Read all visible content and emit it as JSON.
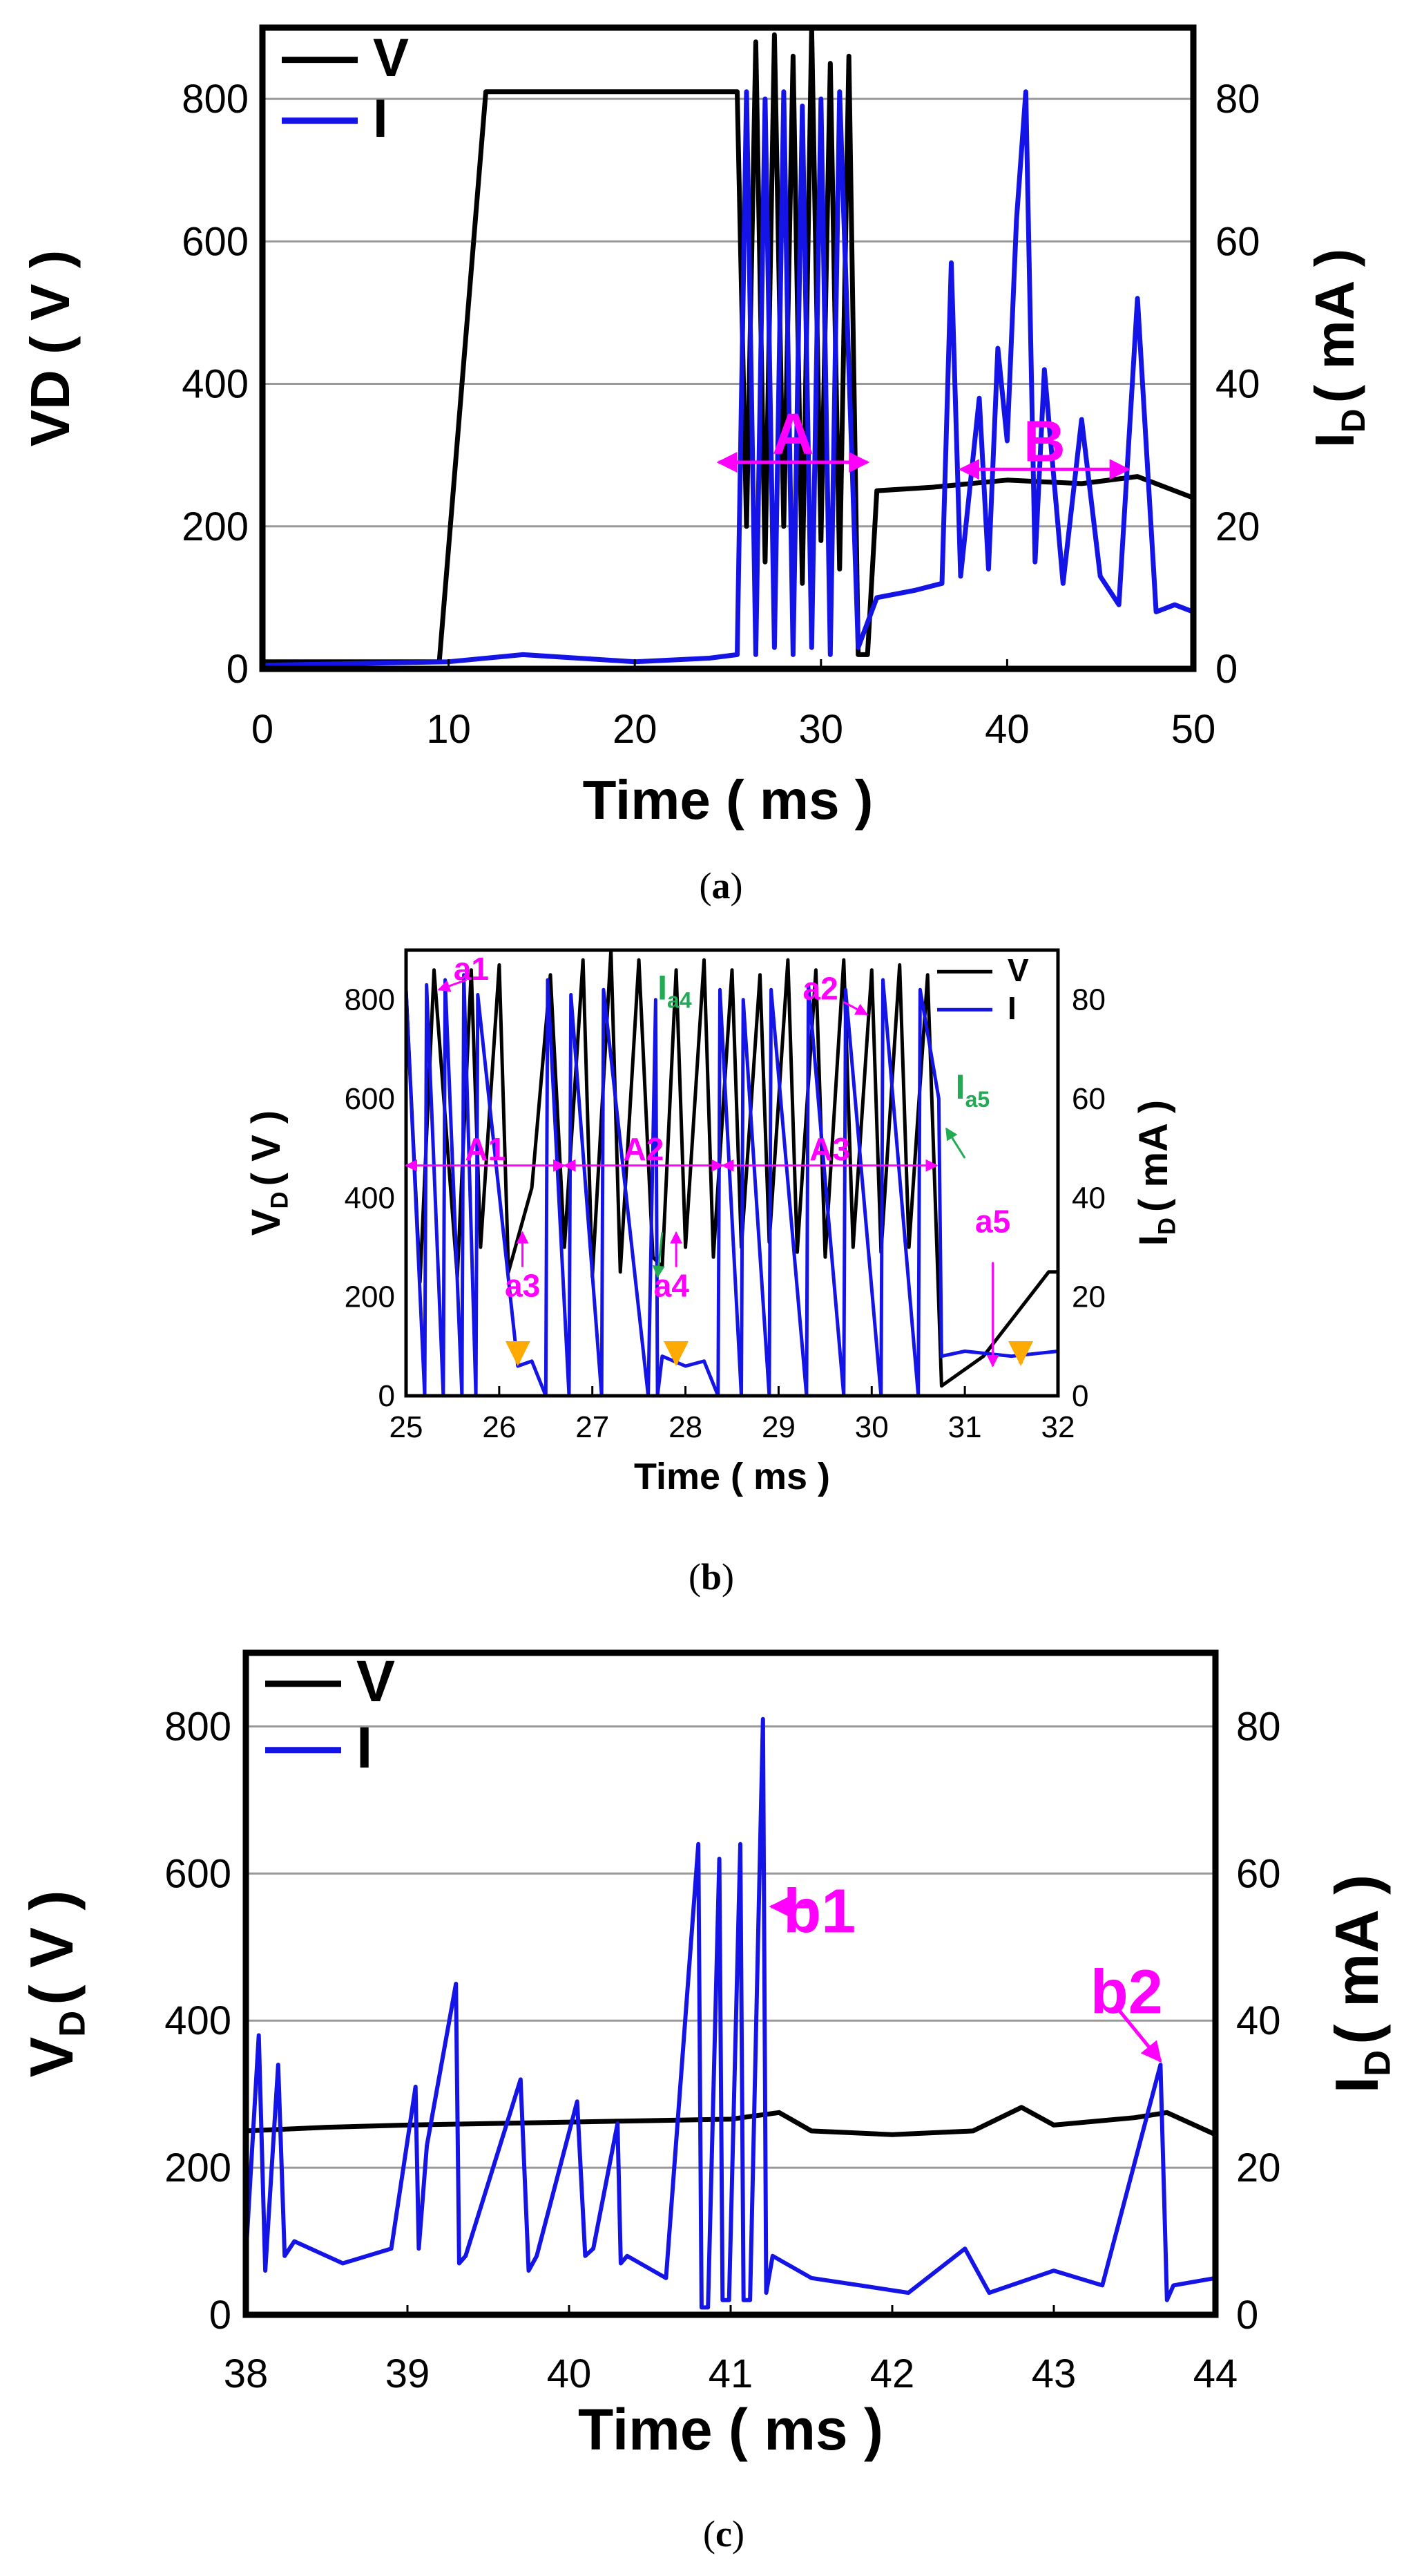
{
  "chart_data": [
    {
      "type": "line",
      "caption_paren_left": "(",
      "caption_letter": "a",
      "caption_paren_right": ")",
      "xlabel": "Time ( ms )",
      "ylabel": "VD ( V )",
      "y2label_main": "I",
      "y2label_sub": "D",
      "y2label_rest": "( mA )",
      "xlim": [
        0,
        50
      ],
      "ylim": [
        0,
        900
      ],
      "y2lim": [
        0,
        90
      ],
      "xticks": [
        "0",
        "10",
        "20",
        "30",
        "40",
        "50"
      ],
      "yticks": [
        "0",
        "200",
        "400",
        "600",
        "800"
      ],
      "y2ticks": [
        "0",
        "20",
        "40",
        "60",
        "80"
      ],
      "grid": "horizontal",
      "legend": {
        "placement": "top-left",
        "items": [
          {
            "label": "V",
            "color": "#000000"
          },
          {
            "label": "I",
            "color": "#1414e6"
          }
        ]
      },
      "annotations": [
        {
          "text": "A",
          "color": "#ff00ff",
          "x_start": 24.5,
          "x_end": 32.5,
          "y": 290
        },
        {
          "text": "B",
          "color": "#ff00ff",
          "x_start": 37.5,
          "x_end": 46.5,
          "y": 280
        }
      ],
      "series": [
        {
          "name": "V",
          "color": "#000000",
          "axis": "left",
          "x": [
            0,
            9.5,
            12,
            25.5,
            26,
            26.5,
            27,
            27.5,
            28,
            28.5,
            29,
            29.5,
            30,
            30.5,
            31,
            31.5,
            32,
            32.5,
            33,
            36,
            40,
            44,
            47,
            50
          ],
          "y": [
            10,
            10,
            810,
            810,
            200,
            880,
            150,
            890,
            200,
            860,
            120,
            900,
            180,
            850,
            140,
            860,
            20,
            20,
            250,
            255,
            265,
            260,
            270,
            240
          ]
        },
        {
          "name": "I",
          "color": "#1414e6",
          "axis": "right",
          "x": [
            0,
            10,
            14,
            20,
            24,
            25.5,
            26,
            26.5,
            27,
            27.5,
            28,
            28.5,
            29,
            29.5,
            30,
            30.5,
            31,
            32,
            33,
            35,
            36.5,
            37,
            37.5,
            38.5,
            39,
            39.5,
            40,
            40.5,
            41,
            41.5,
            42,
            43,
            44,
            45,
            46,
            47,
            48,
            49,
            50
          ],
          "y": [
            0.5,
            1,
            2,
            1,
            1.5,
            2,
            81,
            2,
            80,
            3,
            81,
            2,
            79,
            3,
            80,
            2,
            81,
            3,
            10,
            11,
            12,
            57,
            13,
            38,
            14,
            45,
            32,
            63,
            81,
            15,
            42,
            12,
            35,
            13,
            9,
            52,
            8,
            9,
            8
          ]
        }
      ]
    },
    {
      "type": "line",
      "caption_paren_left": "(",
      "caption_letter": "b",
      "caption_paren_right": ")",
      "xlabel": "Time ( ms )",
      "ylabel_main": "V",
      "ylabel_sub": "D",
      "ylabel_rest": "( V )",
      "y2label_main": "I",
      "y2label_sub": "D",
      "y2label_rest": "( mA )",
      "xlim": [
        25,
        32
      ],
      "ylim": [
        0,
        900
      ],
      "y2lim": [
        0,
        90
      ],
      "xticks": [
        "25",
        "26",
        "27",
        "28",
        "29",
        "30",
        "31",
        "32"
      ],
      "yticks": [
        "0",
        "200",
        "400",
        "600",
        "800"
      ],
      "y2ticks": [
        "0",
        "20",
        "40",
        "60",
        "80"
      ],
      "grid": "off",
      "legend": {
        "placement": "top-right",
        "items": [
          {
            "label": "V",
            "color": "#000000"
          },
          {
            "label": "I",
            "color": "#1414e6"
          }
        ]
      },
      "region_arrows": [
        {
          "text": "A1",
          "x_start": 25,
          "x_end": 26.7,
          "y": 465
        },
        {
          "text": "A2",
          "x_start": 26.7,
          "x_end": 28.4,
          "y": 465
        },
        {
          "text": "A3",
          "x_start": 28.4,
          "x_end": 30.7,
          "y": 465
        }
      ],
      "labels": [
        {
          "text": "a1",
          "color": "#ff00ff",
          "x": 25.7,
          "y": 840
        },
        {
          "text": "a2",
          "color": "#ff00ff",
          "x": 29.45,
          "y": 800
        },
        {
          "text": "a3",
          "color": "#ff00ff",
          "x": 26.25,
          "y": 200
        },
        {
          "text": "a4",
          "color": "#ff00ff",
          "x": 27.85,
          "y": 200
        },
        {
          "text": "a5",
          "color": "#ff00ff",
          "x": 31.3,
          "y": 330
        },
        {
          "main": "I",
          "sub": "a4",
          "color": "#22aa55",
          "x": 27.7,
          "y": 800
        },
        {
          "main": "I",
          "sub": "a5",
          "color": "#22aa55",
          "x": 30.9,
          "y": 600
        }
      ],
      "series": [
        {
          "name": "V",
          "color": "#000000",
          "axis": "left",
          "x": [
            25,
            25.15,
            25.3,
            25.55,
            25.7,
            25.8,
            26.0,
            26.1,
            26.35,
            26.55,
            26.7,
            26.9,
            27.0,
            27.2,
            27.3,
            27.5,
            27.65,
            27.75,
            27.9,
            28.0,
            28.2,
            28.3,
            28.5,
            28.6,
            28.8,
            28.9,
            29.1,
            29.2,
            29.4,
            29.5,
            29.7,
            29.8,
            30.0,
            30.1,
            30.3,
            30.4,
            30.6,
            30.75,
            31.2,
            31.9,
            32
          ],
          "y": [
            820,
            230,
            860,
            240,
            860,
            300,
            870,
            250,
            420,
            850,
            300,
            880,
            240,
            900,
            250,
            880,
            280,
            260,
            860,
            300,
            880,
            280,
            860,
            300,
            850,
            310,
            880,
            290,
            860,
            280,
            880,
            300,
            860,
            290,
            870,
            300,
            850,
            20,
            80,
            250,
            250
          ]
        },
        {
          "name": "I",
          "color": "#1414e6",
          "axis": "right",
          "x": [
            25,
            25.2,
            25.22,
            25.4,
            25.42,
            25.6,
            25.62,
            25.75,
            25.77,
            26.2,
            26.35,
            26.5,
            26.52,
            26.75,
            26.77,
            27.1,
            27.12,
            27.6,
            27.68,
            27.7,
            27.75,
            28.0,
            28.2,
            28.35,
            28.37,
            28.6,
            28.62,
            28.9,
            28.92,
            29.3,
            29.32,
            29.7,
            29.72,
            30.1,
            30.12,
            30.5,
            30.52,
            30.72,
            30.75,
            31.0,
            31.5,
            32
          ],
          "y": [
            82,
            0,
            83,
            0,
            84,
            0,
            85,
            0,
            81,
            6,
            7,
            0,
            84,
            0,
            81,
            0,
            82,
            0,
            80,
            0,
            8,
            6,
            7,
            0,
            82,
            0,
            80,
            0,
            82,
            0,
            83,
            0,
            82,
            0,
            84,
            0,
            82,
            60,
            8,
            9,
            8,
            9
          ]
        }
      ]
    },
    {
      "type": "line",
      "caption_paren_left": "(",
      "caption_letter": "c",
      "caption_paren_right": ")",
      "xlabel": "Time ( ms )",
      "ylabel_main": "V",
      "ylabel_sub": "D",
      "ylabel_rest": "( V )",
      "y2label_main": "I",
      "y2label_sub": "D",
      "y2label_rest": "( mA )",
      "xlim": [
        38,
        44
      ],
      "ylim": [
        0,
        900
      ],
      "y2lim": [
        0,
        90
      ],
      "xticks": [
        "38",
        "39",
        "40",
        "41",
        "42",
        "43",
        "44"
      ],
      "yticks": [
        "0",
        "200",
        "400",
        "600",
        "800"
      ],
      "y2ticks": [
        "0",
        "20",
        "40",
        "60",
        "80"
      ],
      "grid": "horizontal",
      "legend": {
        "placement": "top-left",
        "items": [
          {
            "label": "V",
            "color": "#000000"
          },
          {
            "label": "I",
            "color": "#1414e6"
          }
        ]
      },
      "labels": [
        {
          "text": "b1",
          "color": "#ff00ff",
          "x": 41.55,
          "y": 520
        },
        {
          "text": "b2",
          "color": "#ff00ff",
          "x": 43.45,
          "y": 410
        }
      ],
      "series": [
        {
          "name": "V",
          "color": "#000000",
          "axis": "left",
          "x": [
            38,
            38.5,
            39,
            39.5,
            40,
            40.5,
            41,
            41.3,
            41.5,
            42,
            42.5,
            42.8,
            43,
            43.5,
            43.7,
            44
          ],
          "y": [
            250,
            255,
            258,
            260,
            262,
            264,
            266,
            275,
            250,
            245,
            250,
            282,
            258,
            268,
            275,
            245
          ]
        },
        {
          "name": "I",
          "color": "#1414e6",
          "axis": "right",
          "x": [
            38,
            38.08,
            38.12,
            38.2,
            38.24,
            38.3,
            38.6,
            38.9,
            39.05,
            39.07,
            39.12,
            39.3,
            39.32,
            39.36,
            39.7,
            39.75,
            39.8,
            40.05,
            40.1,
            40.15,
            40.3,
            40.32,
            40.36,
            40.6,
            40.8,
            40.82,
            40.86,
            40.93,
            40.95,
            40.99,
            41.06,
            41.08,
            41.12,
            41.2,
            41.22,
            41.26,
            41.5,
            41.8,
            42.1,
            42.45,
            42.6,
            43.0,
            43.3,
            43.66,
            43.7,
            43.74,
            44
          ],
          "y": [
            8,
            38,
            6,
            34,
            8,
            10,
            7,
            9,
            31,
            9,
            23,
            45,
            7,
            8,
            32,
            6,
            8,
            29,
            8,
            9,
            26,
            7,
            8,
            5,
            64,
            1,
            1,
            62,
            2,
            2,
            64,
            2,
            2,
            81,
            3,
            8,
            5,
            4,
            3,
            9,
            3,
            6,
            4,
            34,
            2,
            4,
            5
          ]
        }
      ]
    }
  ]
}
